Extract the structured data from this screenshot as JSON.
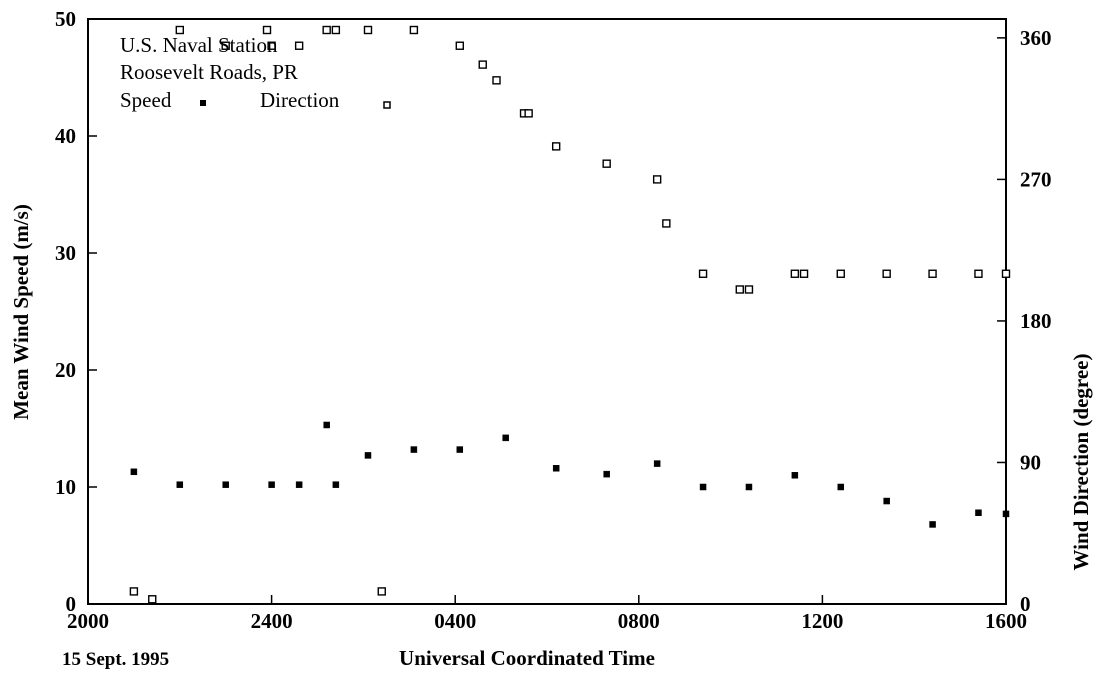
{
  "chart_data": {
    "type": "scatter",
    "title_lines": [
      "U.S. Naval Station",
      "Roosevelt Roads, PR"
    ],
    "legend": {
      "speed_label": "Speed",
      "direction_label": "Direction"
    },
    "xlabel": "Universal Coordinated Time",
    "date_label": "15 Sept. 1995",
    "ylabel_left": "Mean Wind Speed (m/s)",
    "ylabel_right": "Wind Direction (degree)",
    "x_ticks": [
      "2000",
      "2400",
      "0400",
      "0800",
      "1200",
      "1600"
    ],
    "x_tick_hours": [
      0,
      4,
      8,
      12,
      16,
      20
    ],
    "xlim_hours": [
      0,
      20
    ],
    "y_left_ticks": [
      0,
      10,
      20,
      30,
      40,
      50
    ],
    "ylim_left": [
      0,
      50
    ],
    "y_right_ticks": [
      0,
      90,
      180,
      270,
      360
    ],
    "ylim_right": [
      0,
      372
    ],
    "series": [
      {
        "name": "Speed",
        "axis": "left",
        "marker": "filled-square",
        "x_hours": [
          1.0,
          2.0,
          3.0,
          4.0,
          4.6,
          5.2,
          5.4,
          6.1,
          7.1,
          8.1,
          9.1,
          10.2,
          11.3,
          12.4,
          13.4,
          14.4,
          15.4,
          16.4,
          17.4,
          18.4,
          19.4,
          20.0
        ],
        "values": [
          11.3,
          10.2,
          10.2,
          10.2,
          10.2,
          15.3,
          10.2,
          12.7,
          13.2,
          13.2,
          14.2,
          11.6,
          11.1,
          12.0,
          10.0,
          10.0,
          11.0,
          10.0,
          8.8,
          6.8,
          7.8,
          7.7
        ]
      },
      {
        "name": "Direction",
        "axis": "right",
        "marker": "open-square",
        "x_hours": [
          1.0,
          1.4,
          2.0,
          3.0,
          3.9,
          4.0,
          4.6,
          5.2,
          5.4,
          6.1,
          6.4,
          7.1,
          8.1,
          8.6,
          8.9,
          9.5,
          9.6,
          10.2,
          11.3,
          12.4,
          12.6,
          13.4,
          14.2,
          14.4,
          15.4,
          15.6,
          16.4,
          17.4,
          18.4,
          19.4,
          20.0
        ],
        "values": [
          8,
          3,
          365,
          355,
          365,
          355,
          355,
          365,
          365,
          365,
          8,
          365,
          355,
          343,
          333,
          312,
          312,
          291,
          280,
          270,
          242,
          210,
          200,
          200,
          210,
          210,
          210,
          210,
          210,
          210,
          210
        ]
      }
    ]
  }
}
